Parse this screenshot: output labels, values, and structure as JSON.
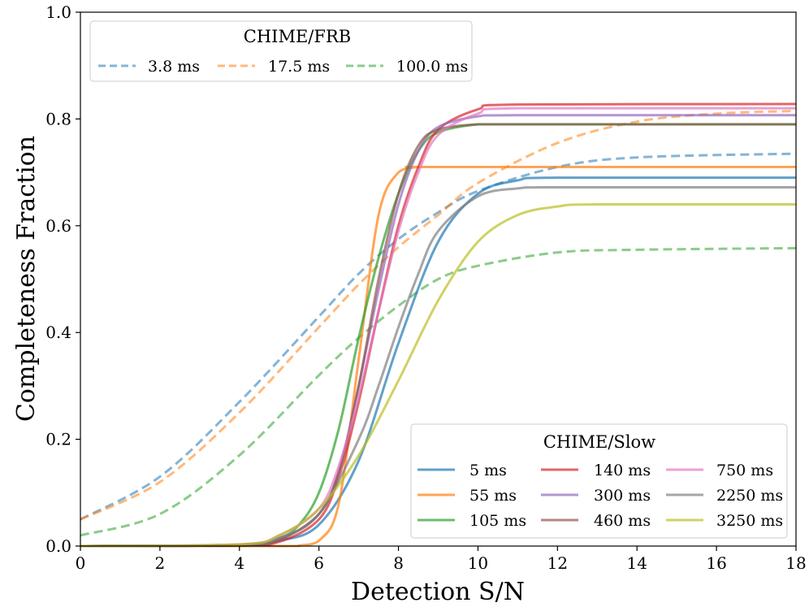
{
  "chart_data": {
    "type": "line",
    "xlabel": "Detection S/N",
    "ylabel": "Completeness Fraction",
    "xlim": [
      0,
      18
    ],
    "ylim": [
      0,
      1
    ],
    "xticks": [
      0,
      2,
      4,
      6,
      8,
      10,
      12,
      14,
      16,
      18
    ],
    "yticks": [
      0.0,
      0.2,
      0.4,
      0.6,
      0.8,
      1.0
    ],
    "ytick_labels": [
      "0.0",
      "0.2",
      "0.4",
      "0.6",
      "0.8",
      "1.0"
    ],
    "legends": [
      {
        "title": "CHIME/FRB",
        "location": "upper-left",
        "entries": [
          "3.8 ms",
          "17.5 ms",
          "100.0 ms"
        ]
      },
      {
        "title": "CHIME/Slow",
        "location": "lower-right",
        "entries": [
          "5 ms",
          "55 ms",
          "105 ms",
          "140 ms",
          "300 ms",
          "460 ms",
          "750 ms",
          "2250 ms",
          "3250 ms"
        ]
      }
    ],
    "series": [
      {
        "name": "3.8 ms",
        "group": "CHIME/FRB",
        "style": "dashed",
        "color": "#1f77b4",
        "x": [
          0,
          2,
          4,
          6,
          7,
          8,
          9,
          10,
          12,
          14,
          18
        ],
        "y": [
          0.05,
          0.13,
          0.27,
          0.43,
          0.51,
          0.575,
          0.625,
          0.665,
          0.71,
          0.728,
          0.735
        ]
      },
      {
        "name": "17.5 ms",
        "group": "CHIME/FRB",
        "style": "dashed",
        "color": "#ff7f0e",
        "x": [
          0,
          2,
          4,
          6,
          7,
          8,
          9,
          10,
          12,
          14,
          16,
          18
        ],
        "y": [
          0.05,
          0.12,
          0.25,
          0.41,
          0.49,
          0.56,
          0.62,
          0.68,
          0.755,
          0.795,
          0.81,
          0.815
        ]
      },
      {
        "name": "100.0 ms",
        "group": "CHIME/FRB",
        "style": "dashed",
        "color": "#2ca02c",
        "x": [
          0,
          2,
          4,
          6,
          7,
          8,
          9,
          10,
          12,
          14,
          18
        ],
        "y": [
          0.02,
          0.06,
          0.17,
          0.32,
          0.39,
          0.45,
          0.5,
          0.525,
          0.55,
          0.555,
          0.558
        ]
      },
      {
        "name": "5 ms",
        "group": "CHIME/Slow",
        "style": "solid",
        "color": "#1f77b4",
        "x": [
          0,
          4,
          5,
          6,
          7,
          8,
          9,
          10,
          11,
          12,
          18
        ],
        "y": [
          0,
          0.002,
          0.01,
          0.04,
          0.16,
          0.38,
          0.57,
          0.66,
          0.685,
          0.69,
          0.69
        ]
      },
      {
        "name": "55 ms",
        "group": "CHIME/Slow",
        "style": "solid",
        "color": "#ff7f0e",
        "x": [
          0,
          5,
          5.5,
          6,
          6.5,
          7,
          7.5,
          8,
          8.5,
          9,
          18
        ],
        "y": [
          0,
          0,
          0.001,
          0.01,
          0.08,
          0.35,
          0.62,
          0.7,
          0.71,
          0.71,
          0.71
        ]
      },
      {
        "name": "105 ms",
        "group": "CHIME/Slow",
        "style": "solid",
        "color": "#2ca02c",
        "x": [
          0,
          4,
          5,
          5.5,
          6,
          6.5,
          7,
          7.5,
          8,
          8.5,
          9,
          10,
          11,
          18
        ],
        "y": [
          0,
          0.002,
          0.015,
          0.04,
          0.1,
          0.22,
          0.39,
          0.54,
          0.66,
          0.74,
          0.775,
          0.79,
          0.79,
          0.79
        ]
      },
      {
        "name": "140 ms",
        "group": "CHIME/Slow",
        "style": "solid",
        "color": "#d62728",
        "x": [
          0,
          4,
          5,
          6,
          6.5,
          7,
          7.5,
          8,
          8.5,
          9,
          10,
          11,
          18
        ],
        "y": [
          0,
          0.001,
          0.008,
          0.05,
          0.13,
          0.27,
          0.44,
          0.6,
          0.71,
          0.78,
          0.818,
          0.827,
          0.828
        ]
      },
      {
        "name": "300 ms",
        "group": "CHIME/Slow",
        "style": "solid",
        "color": "#9467bd",
        "x": [
          0,
          4,
          5,
          6,
          6.5,
          7,
          7.5,
          8,
          8.5,
          9,
          10,
          11,
          18
        ],
        "y": [
          0,
          0.002,
          0.012,
          0.06,
          0.14,
          0.3,
          0.48,
          0.64,
          0.74,
          0.785,
          0.805,
          0.807,
          0.807
        ]
      },
      {
        "name": "460 ms",
        "group": "CHIME/Slow",
        "style": "solid",
        "color": "#8c564b",
        "x": [
          0,
          4,
          5,
          6,
          6.5,
          7,
          7.5,
          8,
          8.5,
          9,
          10,
          11,
          18
        ],
        "y": [
          0,
          0.002,
          0.012,
          0.06,
          0.14,
          0.3,
          0.5,
          0.66,
          0.75,
          0.78,
          0.79,
          0.79,
          0.79
        ]
      },
      {
        "name": "750 ms",
        "group": "CHIME/Slow",
        "style": "solid",
        "color": "#e377c2",
        "x": [
          0,
          4,
          5,
          6,
          6.5,
          7,
          7.5,
          8,
          8.5,
          9,
          10,
          11,
          18
        ],
        "y": [
          0,
          0.003,
          0.02,
          0.07,
          0.15,
          0.28,
          0.44,
          0.59,
          0.7,
          0.77,
          0.81,
          0.82,
          0.82
        ]
      },
      {
        "name": "2250 ms",
        "group": "CHIME/Slow",
        "style": "solid",
        "color": "#7f7f7f",
        "x": [
          0,
          4,
          5,
          6,
          7,
          7.5,
          8,
          8.5,
          9,
          10,
          11,
          12,
          18
        ],
        "y": [
          0,
          0.002,
          0.015,
          0.06,
          0.2,
          0.3,
          0.41,
          0.51,
          0.59,
          0.655,
          0.67,
          0.672,
          0.672
        ]
      },
      {
        "name": "3250 ms",
        "group": "CHIME/Slow",
        "style": "solid",
        "color": "#bcbd22",
        "x": [
          0,
          4,
          5,
          6,
          7,
          8,
          9,
          10,
          11,
          12,
          13,
          18
        ],
        "y": [
          0,
          0.003,
          0.02,
          0.07,
          0.17,
          0.31,
          0.46,
          0.57,
          0.62,
          0.636,
          0.64,
          0.64
        ]
      }
    ]
  }
}
